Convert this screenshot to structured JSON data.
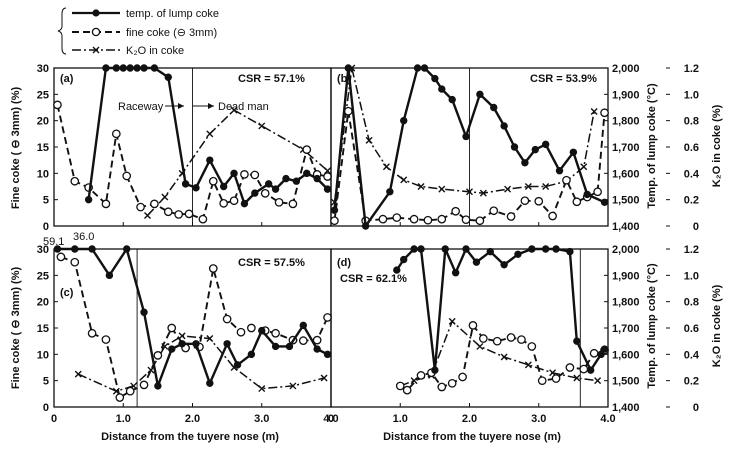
{
  "legend": [
    {
      "label": "temp. of lump coke",
      "style": "solid",
      "marker": "filled-circle",
      "axis": "right-temp"
    },
    {
      "label": "fine coke (⊖ 3mm)",
      "style": "dashed",
      "marker": "open-circle",
      "axis": "left"
    },
    {
      "label": "K₂O in coke",
      "style": "dashdot",
      "marker": "x",
      "axis": "right-k2o"
    }
  ],
  "axes": {
    "left_label": "Fine coke ( ⊖ 3mm) (%)",
    "right_temp_label": "Temp. of lump coke (°C)",
    "right_k2o_label": "K₂O in coke (%)",
    "x_label": "Distance from the tuyere nose (m)",
    "x_ticks": [
      "0",
      "1.0",
      "2.0",
      "3.0",
      "4.0"
    ],
    "left_ticks": [
      "0",
      "5",
      "10",
      "15",
      "20",
      "25",
      "30"
    ],
    "temp_ticks": [
      "1,400",
      "1,500",
      "1,600",
      "1,700",
      "1,800",
      "1,900",
      "2,000"
    ],
    "k2o_ticks": [
      "0",
      "0.2",
      "0.4",
      "0.6",
      "0.8",
      "1.0",
      "1.2"
    ]
  },
  "annotations": {
    "raceway": "Raceway",
    "dead_man": "Dead man",
    "c_top_values": [
      "59.1",
      "36.0"
    ]
  },
  "chart_data": [
    {
      "type": "line",
      "panel": "(a)",
      "csr": "CSR = 57.1%",
      "boundary_x": 2.0,
      "xlim": [
        0,
        4
      ],
      "ylim_fine": [
        0,
        30
      ],
      "ylim_temp": [
        1400,
        2000
      ],
      "ylim_k2o": [
        0,
        1.2
      ],
      "series": [
        {
          "name": "temp. of lump coke",
          "x": [
            0.5,
            0.75,
            0.9,
            1.0,
            1.1,
            1.2,
            1.3,
            1.45,
            1.65,
            1.9,
            2.05,
            2.25,
            2.45,
            2.6,
            2.75,
            2.9,
            3.1,
            3.2,
            3.35,
            3.5,
            3.65,
            3.8,
            3.95
          ],
          "y": [
            1500,
            2000,
            2000,
            2000,
            2000,
            2000,
            2000,
            2000,
            1965,
            1560,
            1545,
            1650,
            1550,
            1600,
            1485,
            1525,
            1560,
            1540,
            1580,
            1570,
            1600,
            1580,
            1540
          ]
        },
        {
          "name": "fine coke (⊖ 3mm)",
          "x": [
            0.05,
            0.3,
            0.5,
            0.75,
            0.9,
            1.05,
            1.25,
            1.45,
            1.65,
            1.8,
            1.95,
            2.15,
            2.3,
            2.45,
            2.6,
            2.75,
            2.9,
            3.05,
            3.25,
            3.45,
            3.65,
            3.8,
            3.95
          ],
          "y": [
            23,
            8.5,
            7.3,
            4.2,
            17.5,
            9.5,
            3.6,
            4.2,
            2.7,
            2.2,
            2.3,
            1.3,
            8.5,
            4.3,
            4.8,
            9.8,
            9.7,
            6.2,
            4.5,
            4.2,
            14.5,
            9.8,
            9.4
          ]
        },
        {
          "name": "K₂O in coke",
          "x": [
            1.35,
            1.6,
            1.85,
            2.25,
            2.6,
            3.0,
            3.6,
            3.95
          ],
          "y": [
            0.08,
            0.22,
            0.4,
            0.7,
            0.88,
            0.76,
            0.58,
            0.42
          ]
        }
      ]
    },
    {
      "type": "line",
      "panel": "(b)",
      "csr": "CSR = 53.9%",
      "boundary_x": 2.0,
      "xlim": [
        0,
        4
      ],
      "ylim_fine": [
        0,
        30
      ],
      "ylim_temp": [
        1400,
        2000
      ],
      "ylim_k2o": [
        0,
        1.2
      ],
      "series": [
        {
          "name": "temp. of lump coke",
          "x": [
            0.05,
            0.25,
            0.5,
            0.85,
            1.05,
            1.25,
            1.35,
            1.5,
            1.6,
            1.75,
            1.95,
            2.15,
            2.35,
            2.5,
            2.65,
            2.8,
            2.95,
            3.1,
            3.3,
            3.5,
            3.7,
            3.95
          ],
          "y": [
            1460,
            2000,
            1400,
            1530,
            1800,
            2000,
            2000,
            1960,
            1920,
            1880,
            1740,
            1900,
            1850,
            1780,
            1700,
            1640,
            1690,
            1710,
            1610,
            1680,
            1520,
            1490
          ]
        },
        {
          "name": "fine coke (⊖ 3mm)",
          "x": [
            0.05,
            0.25,
            0.5,
            0.75,
            0.95,
            1.2,
            1.4,
            1.6,
            1.8,
            1.95,
            2.15,
            2.35,
            2.6,
            2.8,
            3.0,
            3.2,
            3.4,
            3.55,
            3.7,
            3.85,
            3.95
          ],
          "y": [
            1.0,
            21.8,
            1.0,
            1.3,
            1.6,
            1.3,
            1.1,
            1.3,
            2.8,
            1.2,
            1.0,
            2.9,
            1.8,
            4.8,
            4.7,
            1.9,
            8.7,
            4.6,
            5.5,
            6.5,
            21.5
          ]
        },
        {
          "name": "K₂O in coke",
          "x": [
            0.05,
            0.3,
            0.55,
            0.8,
            1.05,
            1.3,
            1.6,
            2.0,
            2.2,
            2.55,
            2.85,
            3.1,
            3.4,
            3.65,
            3.8
          ],
          "y": [
            0.18,
            1.2,
            0.65,
            0.45,
            0.35,
            0.3,
            0.28,
            0.26,
            0.25,
            0.28,
            0.3,
            0.3,
            0.34,
            0.45,
            0.87
          ]
        }
      ]
    },
    {
      "type": "line",
      "panel": "(c)",
      "csr": "CSR = 57.5%",
      "boundary_x": 1.2,
      "xlim": [
        0,
        4
      ],
      "ylim_fine": [
        0,
        30
      ],
      "ylim_temp": [
        1400,
        2000
      ],
      "ylim_k2o": [
        0,
        1.2
      ],
      "series": [
        {
          "name": "temp. of lump coke",
          "x": [
            0.05,
            0.3,
            0.55,
            0.8,
            1.05,
            1.3,
            1.5,
            1.7,
            1.85,
            2.05,
            2.25,
            2.5,
            2.65,
            2.85,
            3.0,
            3.2,
            3.4,
            3.6,
            3.8,
            3.95
          ],
          "y": [
            2000,
            2000,
            2000,
            1900,
            2000,
            1760,
            1480,
            1620,
            1640,
            1640,
            1490,
            1640,
            1560,
            1600,
            1690,
            1630,
            1630,
            1710,
            1620,
            1600
          ]
        },
        {
          "name": "fine coke (⊖ 3mm)",
          "x": [
            0.1,
            0.3,
            0.55,
            0.75,
            0.95,
            1.1,
            1.3,
            1.5,
            1.7,
            1.9,
            2.1,
            2.3,
            2.5,
            2.7,
            2.85,
            3.05,
            3.2,
            3.45,
            3.6,
            3.8,
            3.95
          ],
          "y": [
            28.5,
            27.5,
            14,
            12.8,
            1.8,
            3.0,
            4.2,
            9.8,
            15,
            11.2,
            11.4,
            26.3,
            16.7,
            14.2,
            15,
            14.5,
            14,
            12.7,
            12.6,
            12.7,
            17
          ]
        },
        {
          "name": "K₂O in coke",
          "x": [
            0.35,
            0.9,
            1.15,
            1.4,
            1.6,
            1.85,
            2.25,
            2.6,
            3.0,
            3.45,
            3.9
          ],
          "y": [
            0.25,
            0.12,
            0.16,
            0.28,
            0.46,
            0.54,
            0.52,
            0.3,
            0.14,
            0.16,
            0.22
          ]
        }
      ]
    },
    {
      "type": "line",
      "panel": "(d)",
      "csr": "CSR = 62.1%",
      "boundary_x": 3.6,
      "xlim": [
        0,
        4
      ],
      "ylim_fine": [
        0,
        30
      ],
      "ylim_temp": [
        1400,
        2000
      ],
      "ylim_k2o": [
        0,
        1.2
      ],
      "series": [
        {
          "name": "temp. of lump coke",
          "x": [
            0.95,
            1.05,
            1.2,
            1.3,
            1.5,
            1.65,
            1.8,
            1.95,
            2.1,
            2.3,
            2.5,
            2.7,
            2.9,
            3.1,
            3.25,
            3.45,
            3.55,
            3.75,
            3.9,
            3.95
          ],
          "y": [
            1920,
            1960,
            2000,
            2000,
            1540,
            2000,
            1910,
            2000,
            1950,
            1990,
            1940,
            1980,
            2000,
            2000,
            2000,
            1990,
            1650,
            1540,
            1600,
            1620
          ]
        },
        {
          "name": "fine coke (⊖ 3mm)",
          "x": [
            1.0,
            1.1,
            1.3,
            1.45,
            1.6,
            1.75,
            1.9,
            2.05,
            2.2,
            2.4,
            2.6,
            2.75,
            2.9,
            3.05,
            3.25,
            3.45,
            3.65,
            3.8,
            3.95
          ],
          "y": [
            4.0,
            3.2,
            6.0,
            6.5,
            3.8,
            4.5,
            5.7,
            15.5,
            13,
            12.5,
            13.2,
            12.8,
            11.5,
            5.0,
            5.4,
            7.5,
            7.2,
            10.2,
            10.8
          ]
        },
        {
          "name": "K₂O in coke",
          "x": [
            1.0,
            1.2,
            1.45,
            1.75,
            2.15,
            2.5,
            2.85,
            3.2,
            3.55,
            3.85
          ],
          "y": [
            0.16,
            0.2,
            0.24,
            0.65,
            0.46,
            0.38,
            0.32,
            0.26,
            0.22,
            0.2
          ]
        }
      ]
    }
  ]
}
